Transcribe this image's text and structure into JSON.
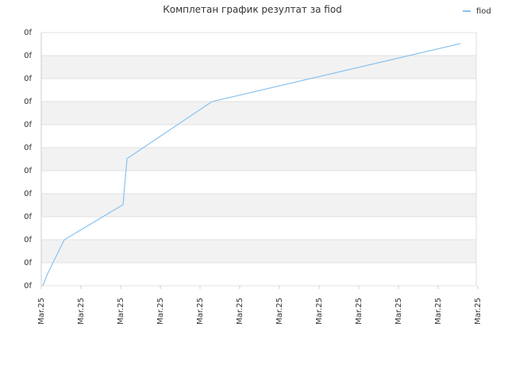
{
  "chart_data": {
    "type": "line",
    "title": "Комплетан график резултат за fiod",
    "x": [
      0.04,
      0.14,
      0.58,
      2.06,
      2.16,
      4.3,
      10.56
    ],
    "series": [
      {
        "name": "fiod",
        "color": "#88c2f0",
        "values": [
          0,
          0.45,
          2,
          3.52,
          5.52,
          8,
          10.52
        ]
      }
    ],
    "xlim": [
      0,
      11
    ],
    "xticks": [
      {
        "value": 0,
        "label": "Mar.25"
      },
      {
        "value": 1,
        "label": "Mar.25"
      },
      {
        "value": 2,
        "label": "Mar.25"
      },
      {
        "value": 3,
        "label": "Mar.25"
      },
      {
        "value": 4,
        "label": "Mar.25"
      },
      {
        "value": 5,
        "label": "Mar.25"
      },
      {
        "value": 6,
        "label": "Mar.25"
      },
      {
        "value": 7,
        "label": "Mar.25"
      },
      {
        "value": 8,
        "label": "Mar.25"
      },
      {
        "value": 9,
        "label": "Mar.25"
      },
      {
        "value": 10,
        "label": "Mar.25"
      },
      {
        "value": 11,
        "label": "Mar.25"
      }
    ],
    "ylim": [
      0,
      11
    ],
    "yticks": [
      {
        "value": 0,
        "label": "0f"
      },
      {
        "value": 1,
        "label": "0f"
      },
      {
        "value": 2,
        "label": "0f"
      },
      {
        "value": 3,
        "label": "0f"
      },
      {
        "value": 4,
        "label": "0f"
      },
      {
        "value": 5,
        "label": "0f"
      },
      {
        "value": 6,
        "label": "0f"
      },
      {
        "value": 7,
        "label": "0f"
      },
      {
        "value": 8,
        "label": "0f"
      },
      {
        "value": 9,
        "label": "0f"
      },
      {
        "value": 10,
        "label": "0f"
      },
      {
        "value": 11,
        "label": "0f"
      }
    ],
    "grid": true,
    "legend": "top-right"
  }
}
